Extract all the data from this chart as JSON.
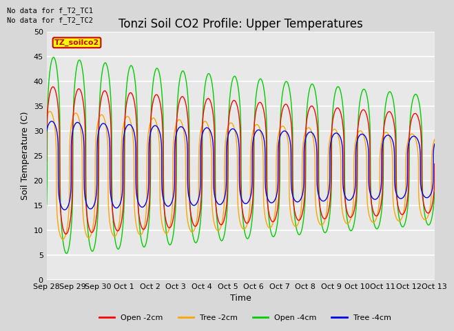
{
  "title": "Tonzi Soil CO2 Profile: Upper Temperatures",
  "xlabel": "Time",
  "ylabel": "Soil Temperature (C)",
  "ylim": [
    0,
    50
  ],
  "yticks": [
    0,
    5,
    10,
    15,
    20,
    25,
    30,
    35,
    40,
    45,
    50
  ],
  "annotation_lines": [
    "No data for f_T2_TC1",
    "No data for f_T2_TC2"
  ],
  "legend_label": "TZ_soilco2",
  "series_labels": [
    "Open -2cm",
    "Tree -2cm",
    "Open -4cm",
    "Tree -4cm"
  ],
  "series_colors": [
    "#ff0000",
    "#ffa500",
    "#00cc00",
    "#0000ee"
  ],
  "xtick_labels": [
    "Sep 28",
    "Sep 29",
    "Sep 30",
    "Oct 1",
    "Oct 2",
    "Oct 3",
    "Oct 4",
    "Oct 5",
    "Oct 6",
    "Oct 7",
    "Oct 8",
    "Oct 9",
    "Oct 10",
    "Oct 11",
    "Oct 12",
    "Oct 13"
  ],
  "bg_color": "#d8d8d8",
  "plot_bg_color": "#e8e8e8",
  "grid_color": "#ffffff",
  "title_fontsize": 12,
  "label_fontsize": 9,
  "tick_fontsize": 8,
  "figsize": [
    6.4,
    4.8
  ],
  "dpi": 100
}
